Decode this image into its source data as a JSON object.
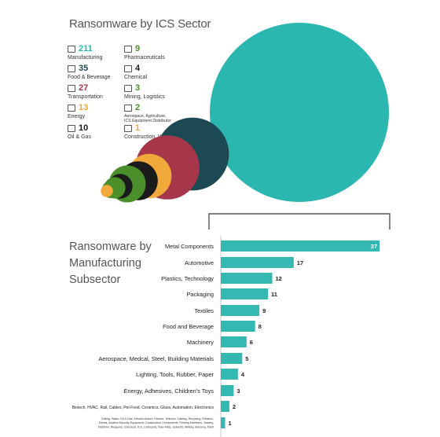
{
  "title": "Ransomware by ICS Sector",
  "sectors": [
    {
      "value": "211",
      "label": "Manufacturing",
      "color": "#2bb6b0",
      "icon": "factory-icon"
    },
    {
      "value": "9",
      "label": "Pharmaceuticals",
      "color": "#4a8f2a",
      "icon": "pills-icon"
    },
    {
      "value": "35",
      "label": "Food & Beverage",
      "color": "#1d4a52",
      "icon": "food-icon"
    },
    {
      "value": "4",
      "label": "Chemical",
      "color": "#1b1b1b",
      "icon": "flask-icon"
    },
    {
      "value": "27",
      "label": "Transportation",
      "color": "#a6374a",
      "icon": "truck-icon"
    },
    {
      "value": "3",
      "label": "Mining, Logistics",
      "color": "#4a8f2a",
      "icon": "mining-icon"
    },
    {
      "value": "13",
      "label": "Energy",
      "color": "#f2a93b",
      "icon": "energy-icon"
    },
    {
      "value": "2",
      "label": "Aerospace, Agriculture, ICS Equipment Distributor",
      "color": "#4a8f2a",
      "icon": "aerospace-icon"
    },
    {
      "value": "10",
      "label": "Oil & Gas",
      "color": "#1b1b1b",
      "icon": "oil-icon"
    },
    {
      "value": "1",
      "label": "Construction, Water",
      "color": "#f2a93b",
      "icon": "construction-icon"
    }
  ],
  "subtitle": "Ransomware by Manufacturing Subsector",
  "chart_data": [
    {
      "type": "scatter",
      "title": "Ransomware by ICS Sector",
      "categories": [
        "Manufacturing",
        "Food & Beverage",
        "Transportation",
        "Energy",
        "Oil & Gas",
        "Pharmaceuticals",
        "Chemical",
        "Mining, Logistics",
        "Aerospace, Agriculture, ICS Equipment Distributor",
        "Construction, Water"
      ],
      "values": [
        211,
        35,
        27,
        13,
        10,
        9,
        4,
        3,
        2,
        1
      ],
      "colors": [
        "#2bb6b0",
        "#1d4a52",
        "#a6374a",
        "#f2a93b",
        "#1b1b1b",
        "#4a8f2a",
        "#1b1b1b",
        "#4a8f2a",
        "#4a8f2a",
        "#f2a93b"
      ]
    },
    {
      "type": "bar",
      "orientation": "horizontal",
      "title": "Ransomware by Manufacturing Subsector",
      "categories": [
        "Metal Components",
        "Automotive",
        "Plastics, Technology",
        "Packaging",
        "Textiles",
        "Food and Beverage",
        "Machinery",
        "Aerospace, Medcal, Steel, Building Materials",
        "Lighting, Tools, Rubber, Paper",
        "Energy, Adhesives, Children's Toys",
        "Biotech, HVAC, Rail, Cables, Pet Food, Ceramics, Glass, Automation, Electronics",
        "Drilling, Water, Oil & Gas, Electric Motors, Electric, Telecom, Cabling, Recycling, Filtration, Dental, Aviation Security Equipment, Construction Components, Printing Machines, Jewelry, Maritime, Weapons, Chemical, ICS, Lubricants, Raw Mats, Solvents, Military, Masonry, Paint"
      ],
      "values": [
        37,
        17,
        12,
        11,
        9,
        8,
        6,
        5,
        4,
        3,
        2,
        1
      ],
      "xlim": [
        0,
        37
      ],
      "bar_color": "#34b8b2"
    }
  ]
}
